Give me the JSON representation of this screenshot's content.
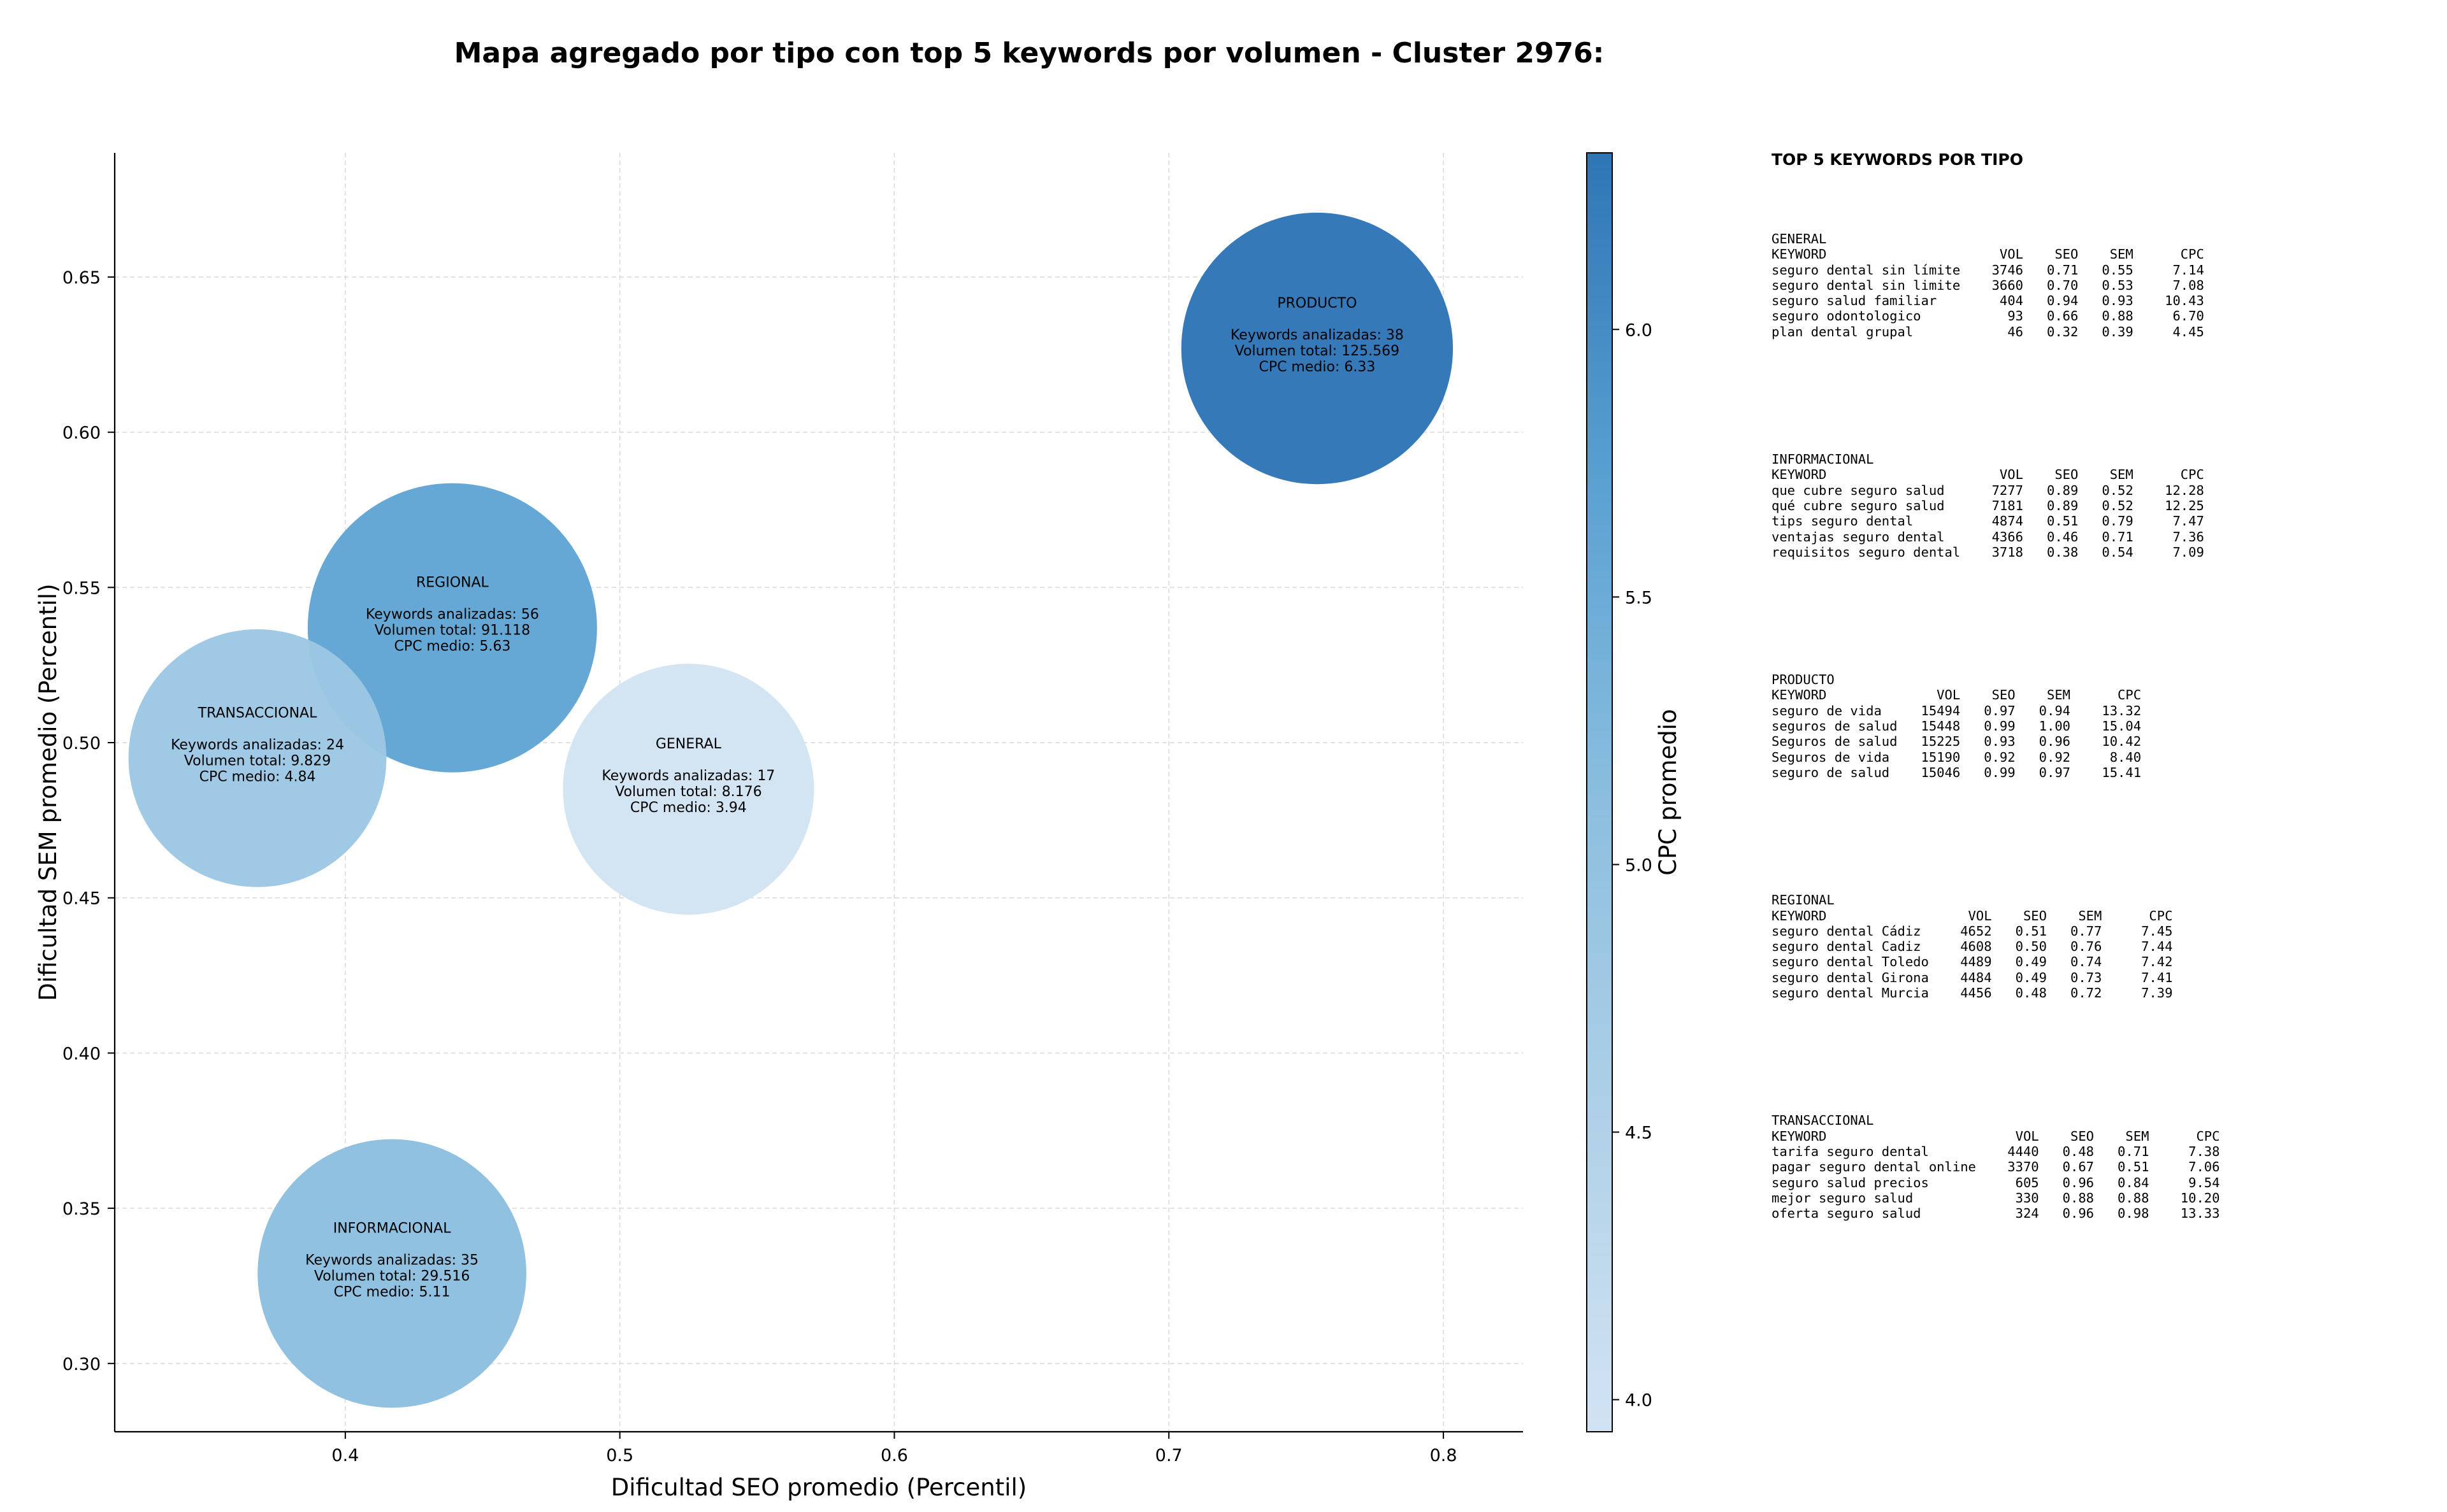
{
  "title": "Mapa agregado por tipo con top 5 keywords por volumen - Cluster 2976:",
  "chart_data": {
    "type": "scatter",
    "subtype": "bubble",
    "xlabel": "Dificultad SEO promedio (Percentil)",
    "ylabel": "Dificultad SEM promedio (Percentil)",
    "xlim": [
      0.316,
      0.829
    ],
    "ylim": [
      0.278,
      0.69
    ],
    "xticks": [
      "0.4",
      "0.5",
      "0.6",
      "0.7",
      "0.8"
    ],
    "yticks": [
      "0.30",
      "0.35",
      "0.40",
      "0.45",
      "0.50",
      "0.55",
      "0.60",
      "0.65"
    ],
    "grid": true,
    "colorbar": {
      "label": "CPC promedio",
      "range": [
        3.94,
        6.33
      ],
      "ticks": [
        "4.0",
        "4.5",
        "5.0",
        "5.5",
        "6.0"
      ],
      "colormap": "Blues",
      "low_color": "#d2e3f3",
      "high_color": "#2e75b6"
    },
    "points": [
      {
        "tipo": "PRODUCTO",
        "x": 0.754,
        "y": 0.627,
        "keywords": 38,
        "volumen": 125569,
        "cpc": 6.33,
        "label_name": "PRODUCTO",
        "label_kw": "Keywords analizadas: 38",
        "label_vol": "Volumen total: 125.569",
        "label_cpc": "CPC medio: 6.33"
      },
      {
        "tipo": "REGIONAL",
        "x": 0.439,
        "y": 0.537,
        "keywords": 56,
        "volumen": 91118,
        "cpc": 5.63,
        "label_name": "REGIONAL",
        "label_kw": "Keywords analizadas: 56",
        "label_vol": "Volumen total: 91.118",
        "label_cpc": "CPC medio: 5.63"
      },
      {
        "tipo": "TRANSACCIONAL",
        "x": 0.368,
        "y": 0.495,
        "keywords": 24,
        "volumen": 9829,
        "cpc": 4.84,
        "label_name": "TRANSACCIONAL",
        "label_kw": "Keywords analizadas: 24",
        "label_vol": "Volumen total: 9.829",
        "label_cpc": "CPC medio: 4.84"
      },
      {
        "tipo": "GENERAL",
        "x": 0.525,
        "y": 0.485,
        "keywords": 17,
        "volumen": 8176,
        "cpc": 3.94,
        "label_name": "GENERAL",
        "label_kw": "Keywords analizadas: 17",
        "label_vol": "Volumen total: 8.176",
        "label_cpc": "CPC medio: 3.94"
      },
      {
        "tipo": "INFORMACIONAL",
        "x": 0.417,
        "y": 0.329,
        "keywords": 35,
        "volumen": 29516,
        "cpc": 5.11,
        "label_name": "INFORMACIONAL",
        "label_kw": "Keywords analizadas: 35",
        "label_vol": "Volumen total: 29.516",
        "label_cpc": "CPC medio: 5.11"
      }
    ]
  },
  "top_keywords": {
    "title": "TOP 5 KEYWORDS POR TIPO",
    "groups": [
      {
        "name": "GENERAL",
        "block": "GENERAL\nKEYWORD                      VOL    SEO    SEM      CPC\nseguro dental sin límite    3746   0.71   0.55     7.14\nseguro dental sin limite    3660   0.70   0.53     7.08\nseguro salud familiar        404   0.94   0.93    10.43\nseguro odontologico           93   0.66   0.88     6.70\nplan dental grupal            46   0.32   0.39     4.45"
      },
      {
        "name": "INFORMACIONAL",
        "block": "INFORMACIONAL\nKEYWORD                      VOL    SEO    SEM      CPC\nque cubre seguro salud      7277   0.89   0.52    12.28\nqué cubre seguro salud      7181   0.89   0.52    12.25\ntips seguro dental          4874   0.51   0.79     7.47\nventajas seguro dental      4366   0.46   0.71     7.36\nrequisitos seguro dental    3718   0.38   0.54     7.09"
      },
      {
        "name": "PRODUCTO",
        "block": "PRODUCTO\nKEYWORD              VOL    SEO    SEM      CPC\nseguro de vida     15494   0.97   0.94    13.32\nseguros de salud   15448   0.99   1.00    15.04\nSeguros de salud   15225   0.93   0.96    10.42\nSeguros de vida    15190   0.92   0.92     8.40\nseguro de salud    15046   0.99   0.97    15.41"
      },
      {
        "name": "REGIONAL",
        "block": "REGIONAL\nKEYWORD                  VOL    SEO    SEM      CPC\nseguro dental Cádiz     4652   0.51   0.77     7.45\nseguro dental Cadiz     4608   0.50   0.76     7.44\nseguro dental Toledo    4489   0.49   0.74     7.42\nseguro dental Girona    4484   0.49   0.73     7.41\nseguro dental Murcia    4456   0.48   0.72     7.39"
      },
      {
        "name": "TRANSACCIONAL",
        "block": "TRANSACCIONAL\nKEYWORD                        VOL    SEO    SEM      CPC\ntarifa seguro dental          4440   0.48   0.71     7.38\npagar seguro dental online    3370   0.67   0.51     7.06\nseguro salud precios           605   0.96   0.84     9.54\nmejor seguro salud             330   0.88   0.88    10.20\noferta seguro salud            324   0.96   0.98    13.33"
      }
    ]
  }
}
